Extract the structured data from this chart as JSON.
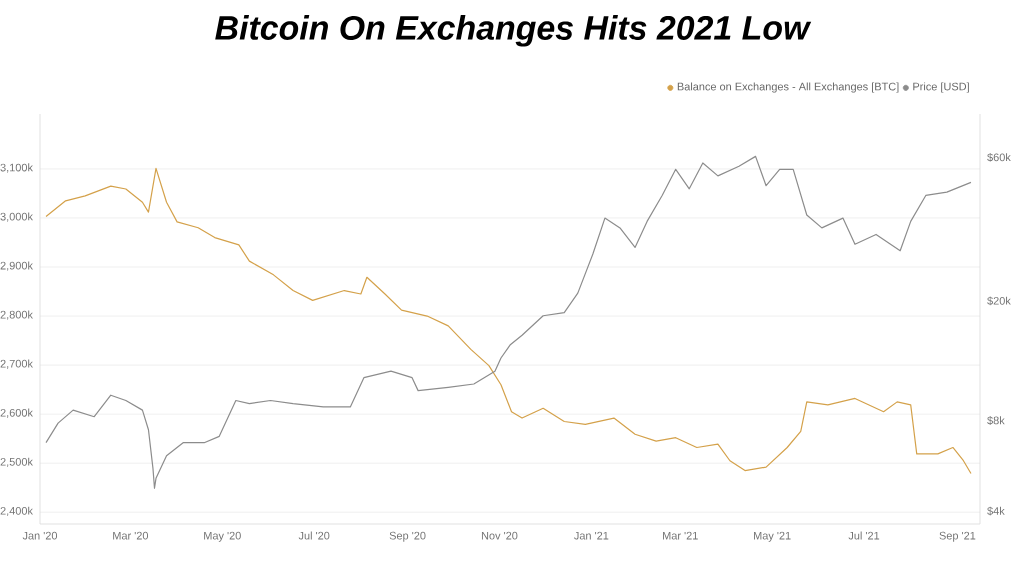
{
  "chart_data": {
    "type": "line",
    "title": "Bitcoin On Exchanges Hits 2021 Low",
    "xlim": [
      "2020-01-01",
      "2021-09-16"
    ],
    "xticks": [
      {
        "value": "2020-01-01",
        "label": "Jan '20"
      },
      {
        "value": "2020-03-01",
        "label": "Mar '20"
      },
      {
        "value": "2020-05-01",
        "label": "May '20"
      },
      {
        "value": "2020-07-01",
        "label": "Jul '20"
      },
      {
        "value": "2020-09-01",
        "label": "Sep '20"
      },
      {
        "value": "2020-11-01",
        "label": "Nov '20"
      },
      {
        "value": "2021-01-01",
        "label": "Jan '21"
      },
      {
        "value": "2021-03-01",
        "label": "Mar '21"
      },
      {
        "value": "2021-05-01",
        "label": "May '21"
      },
      {
        "value": "2021-07-01",
        "label": "Jul '21"
      },
      {
        "value": "2021-09-01",
        "label": "Sep '21"
      }
    ],
    "ylim": [
      2376000,
      3212000
    ],
    "yticks": [
      {
        "value": 2400000,
        "label": "2,400k"
      },
      {
        "value": 2500000,
        "label": "2,500k"
      },
      {
        "value": 2600000,
        "label": "2,600k"
      },
      {
        "value": 2700000,
        "label": "2,700k"
      },
      {
        "value": 2800000,
        "label": "2,800k"
      },
      {
        "value": 2900000,
        "label": "2,900k"
      },
      {
        "value": 3000000,
        "label": "3,000k"
      },
      {
        "value": 3100000,
        "label": "3,100k"
      }
    ],
    "log": "y2",
    "y2lim": [
      3660,
      84500
    ],
    "y2ticks": [
      {
        "value": 4000,
        "label": "$4k"
      },
      {
        "value": 8000,
        "label": "$8k"
      },
      {
        "value": 20000,
        "label": "$20k"
      },
      {
        "value": 60000,
        "label": "$60k"
      }
    ],
    "grid": "y",
    "legend": "top right",
    "marker": "none",
    "series": [
      {
        "name": "Balance on Exchanges - All Exchanges [BTC]",
        "color": "#d4a14a",
        "x": [
          "2020-01-05",
          "2020-01-18",
          "2020-01-31",
          "2020-02-17",
          "2020-02-27",
          "2020-03-09",
          "2020-03-13",
          "2020-03-18",
          "2020-03-25",
          "2020-04-01",
          "2020-04-15",
          "2020-04-26",
          "2020-05-12",
          "2020-05-19",
          "2020-06-04",
          "2020-06-17",
          "2020-06-30",
          "2020-07-21",
          "2020-08-01",
          "2020-08-05",
          "2020-08-17",
          "2020-08-28",
          "2020-09-14",
          "2020-09-28",
          "2020-10-13",
          "2020-10-25",
          "2020-11-02",
          "2020-11-09",
          "2020-11-16",
          "2020-11-30",
          "2020-12-14",
          "2020-12-28",
          "2021-01-16",
          "2021-01-30",
          "2021-02-13",
          "2021-02-26",
          "2021-03-12",
          "2021-03-26",
          "2021-04-03",
          "2021-04-13",
          "2021-04-27",
          "2021-05-11",
          "2021-05-20",
          "2021-05-24",
          "2021-06-07",
          "2021-06-25",
          "2021-07-14",
          "2021-07-23",
          "2021-08-01",
          "2021-08-05",
          "2021-08-19",
          "2021-08-29",
          "2021-09-05",
          "2021-09-10"
        ],
        "values": [
          3003000,
          3035000,
          3045000,
          3065000,
          3059000,
          3032000,
          3012000,
          3101000,
          3032000,
          2992000,
          2980000,
          2960000,
          2945000,
          2912000,
          2884000,
          2852000,
          2832000,
          2852000,
          2845000,
          2879000,
          2845000,
          2812000,
          2800000,
          2780000,
          2732000,
          2699000,
          2660000,
          2605000,
          2592000,
          2612000,
          2585000,
          2579000,
          2592000,
          2559000,
          2545000,
          2552000,
          2532000,
          2539000,
          2505000,
          2485000,
          2492000,
          2532000,
          2565000,
          2625000,
          2619000,
          2632000,
          2605000,
          2625000,
          2619000,
          2519000,
          2519000,
          2532000,
          2505000,
          2479000
        ]
      },
      {
        "name": "Price [USD]",
        "color": "#8c8c8c",
        "axis": "y2",
        "x": [
          "2020-01-05",
          "2020-01-13",
          "2020-01-23",
          "2020-02-06",
          "2020-02-17",
          "2020-02-27",
          "2020-03-09",
          "2020-03-13",
          "2020-03-16",
          "2020-03-17",
          "2020-03-18",
          "2020-03-25",
          "2020-04-05",
          "2020-04-19",
          "2020-04-29",
          "2020-05-10",
          "2020-05-19",
          "2020-06-02",
          "2020-06-17",
          "2020-07-07",
          "2020-07-25",
          "2020-08-03",
          "2020-08-21",
          "2020-09-04",
          "2020-09-08",
          "2020-09-28",
          "2020-10-15",
          "2020-10-29",
          "2020-11-02",
          "2020-11-08",
          "2020-11-16",
          "2020-11-30",
          "2020-12-14",
          "2020-12-23",
          "2021-01-02",
          "2021-01-10",
          "2021-01-20",
          "2021-01-30",
          "2021-02-07",
          "2021-02-17",
          "2021-02-26",
          "2021-03-07",
          "2021-03-16",
          "2021-03-26",
          "2021-04-09",
          "2021-04-20",
          "2021-04-27",
          "2021-05-06",
          "2021-05-15",
          "2021-05-24",
          "2021-06-03",
          "2021-06-17",
          "2021-06-25",
          "2021-07-09",
          "2021-07-25",
          "2021-08-01",
          "2021-08-11",
          "2021-08-25",
          "2021-09-10"
        ],
        "values": [
          6820,
          7920,
          8750,
          8320,
          9810,
          9420,
          8750,
          7530,
          5590,
          4810,
          5190,
          6170,
          6820,
          6820,
          7160,
          9420,
          9200,
          9420,
          9200,
          8970,
          8970,
          11220,
          11790,
          11220,
          10160,
          10420,
          10690,
          11790,
          13040,
          14400,
          15520,
          18030,
          18460,
          21440,
          28910,
          38070,
          35320,
          30410,
          37120,
          45280,
          55320,
          47640,
          58090,
          52600,
          56640,
          61080,
          48790,
          55320,
          55320,
          38990,
          35320,
          38070,
          31160,
          33590,
          29650,
          37120,
          45280,
          46450,
          50040
        ]
      }
    ]
  }
}
